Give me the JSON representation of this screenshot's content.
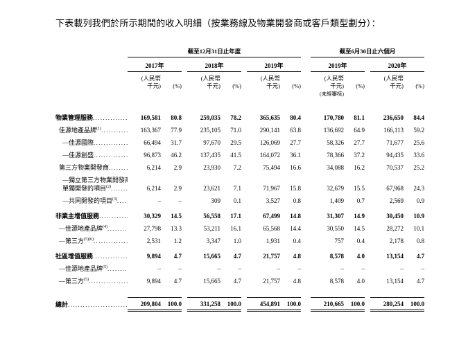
{
  "intro": "下表載列我們於所示期間的收入明細（按業務線及物業開發商或客戶類型劃分）：",
  "table": {
    "groups": [
      {
        "label": "截至12月31日止年度",
        "years": [
          "2017年",
          "2018年",
          "2019年"
        ]
      },
      {
        "label": "截至6月30日止六個月",
        "years": [
          "2019年",
          "2020年"
        ]
      }
    ],
    "units": {
      "rmb1": "(人民幣",
      "rmb2": "千元)",
      "pct": "(%)",
      "unaudited": "(未經審核)"
    },
    "rows": [
      {
        "label": "物業管理服務",
        "sup": "",
        "style": "section",
        "indent": 0,
        "values": [
          "169,581",
          "80.8",
          "259,035",
          "78.2",
          "365,635",
          "80.4",
          "170,780",
          "81.1",
          "236,650",
          "84.4"
        ]
      },
      {
        "label": "佳源地產品牌",
        "sup": "(1)",
        "style": "normal",
        "indent": 1,
        "values": [
          "163,367",
          "77.9",
          "235,105",
          "71.0",
          "290,141",
          "63.8",
          "136,692",
          "64.9",
          "166,113",
          "59.2"
        ]
      },
      {
        "label": "—佳源國際",
        "sup": "",
        "style": "normal",
        "indent": 2,
        "values": [
          "66,494",
          "31.7",
          "97,670",
          "29.5",
          "126,069",
          "27.7",
          "58,326",
          "27.7",
          "71,677",
          "25.6"
        ]
      },
      {
        "label": "—佳源創盛",
        "sup": "",
        "style": "normal",
        "indent": 2,
        "values": [
          "96,873",
          "46.2",
          "137,435",
          "41.5",
          "164,072",
          "36.1",
          "78,366",
          "37.2",
          "94,435",
          "33.6"
        ]
      },
      {
        "label": "第三方物業開發商",
        "sup": "",
        "style": "normal",
        "indent": 1,
        "values": [
          "6,214",
          "2.9",
          "23,930",
          "7.2",
          "75,494",
          "16.6",
          "34,088",
          "16.2",
          "70,537",
          "25.2"
        ]
      },
      {
        "label": "—獨立第三方物業開發商",
        "label2": "單獨開發的項目",
        "sup": "(2)",
        "style": "normal",
        "indent": 2,
        "values": [
          "6,214",
          "2.9",
          "23,621",
          "7.1",
          "71,967",
          "15.8",
          "32,679",
          "15.5",
          "67,968",
          "24.3"
        ]
      },
      {
        "label": "—共同開發的項目",
        "sup": "(3)",
        "style": "normal",
        "indent": 2,
        "values": [
          "–",
          "–",
          "309",
          "0.1",
          "3,527",
          "0.8",
          "1,409",
          "0.7",
          "2,569",
          "0.9"
        ]
      },
      {
        "label": "非業主增值服務",
        "sup": "",
        "style": "section",
        "indent": 0,
        "values": [
          "30,329",
          "14.5",
          "56,558",
          "17.1",
          "67,499",
          "14.8",
          "31,307",
          "14.9",
          "30,450",
          "10.9"
        ]
      },
      {
        "label": "—佳源地產品牌",
        "sup": "(4)",
        "style": "normal",
        "indent": 1,
        "values": [
          "27,798",
          "13.3",
          "53,211",
          "16.1",
          "65,568",
          "14.4",
          "30,550",
          "14.5",
          "28,272",
          "10.1"
        ]
      },
      {
        "label": "—第三方",
        "sup": "(5)(6)",
        "style": "normal",
        "indent": 1,
        "values": [
          "2,531",
          "1.2",
          "3,347",
          "1.0",
          "1,931",
          "0.4",
          "757",
          "0.4",
          "2,178",
          "0.8"
        ]
      },
      {
        "label": "社區增值服務",
        "sup": "",
        "style": "section",
        "indent": 0,
        "values": [
          "9,894",
          "4.7",
          "15,665",
          "4.7",
          "21,757",
          "4.8",
          "8,578",
          "4.0",
          "13,154",
          "4.7"
        ]
      },
      {
        "label": "—佳源地產品牌",
        "sup": "(5)",
        "style": "normal",
        "indent": 1,
        "values": [
          "–",
          "–",
          "–",
          "–",
          "–",
          "–",
          "–",
          "–",
          "–",
          "–"
        ]
      },
      {
        "label": "—第三方",
        "sup": "(5)",
        "style": "normal",
        "indent": 1,
        "values": [
          "9,894",
          "4.7",
          "15,665",
          "4.7",
          "21,757",
          "4.8",
          "8,578",
          "4.0",
          "13,154",
          "4.7"
        ]
      },
      {
        "label": "總計",
        "sup": "",
        "style": "total",
        "indent": 0,
        "values": [
          "209,804",
          "100.0",
          "331,258",
          "100.0",
          "454,891",
          "100.0",
          "210,665",
          "100.0",
          "280,254",
          "100.0"
        ]
      }
    ]
  }
}
